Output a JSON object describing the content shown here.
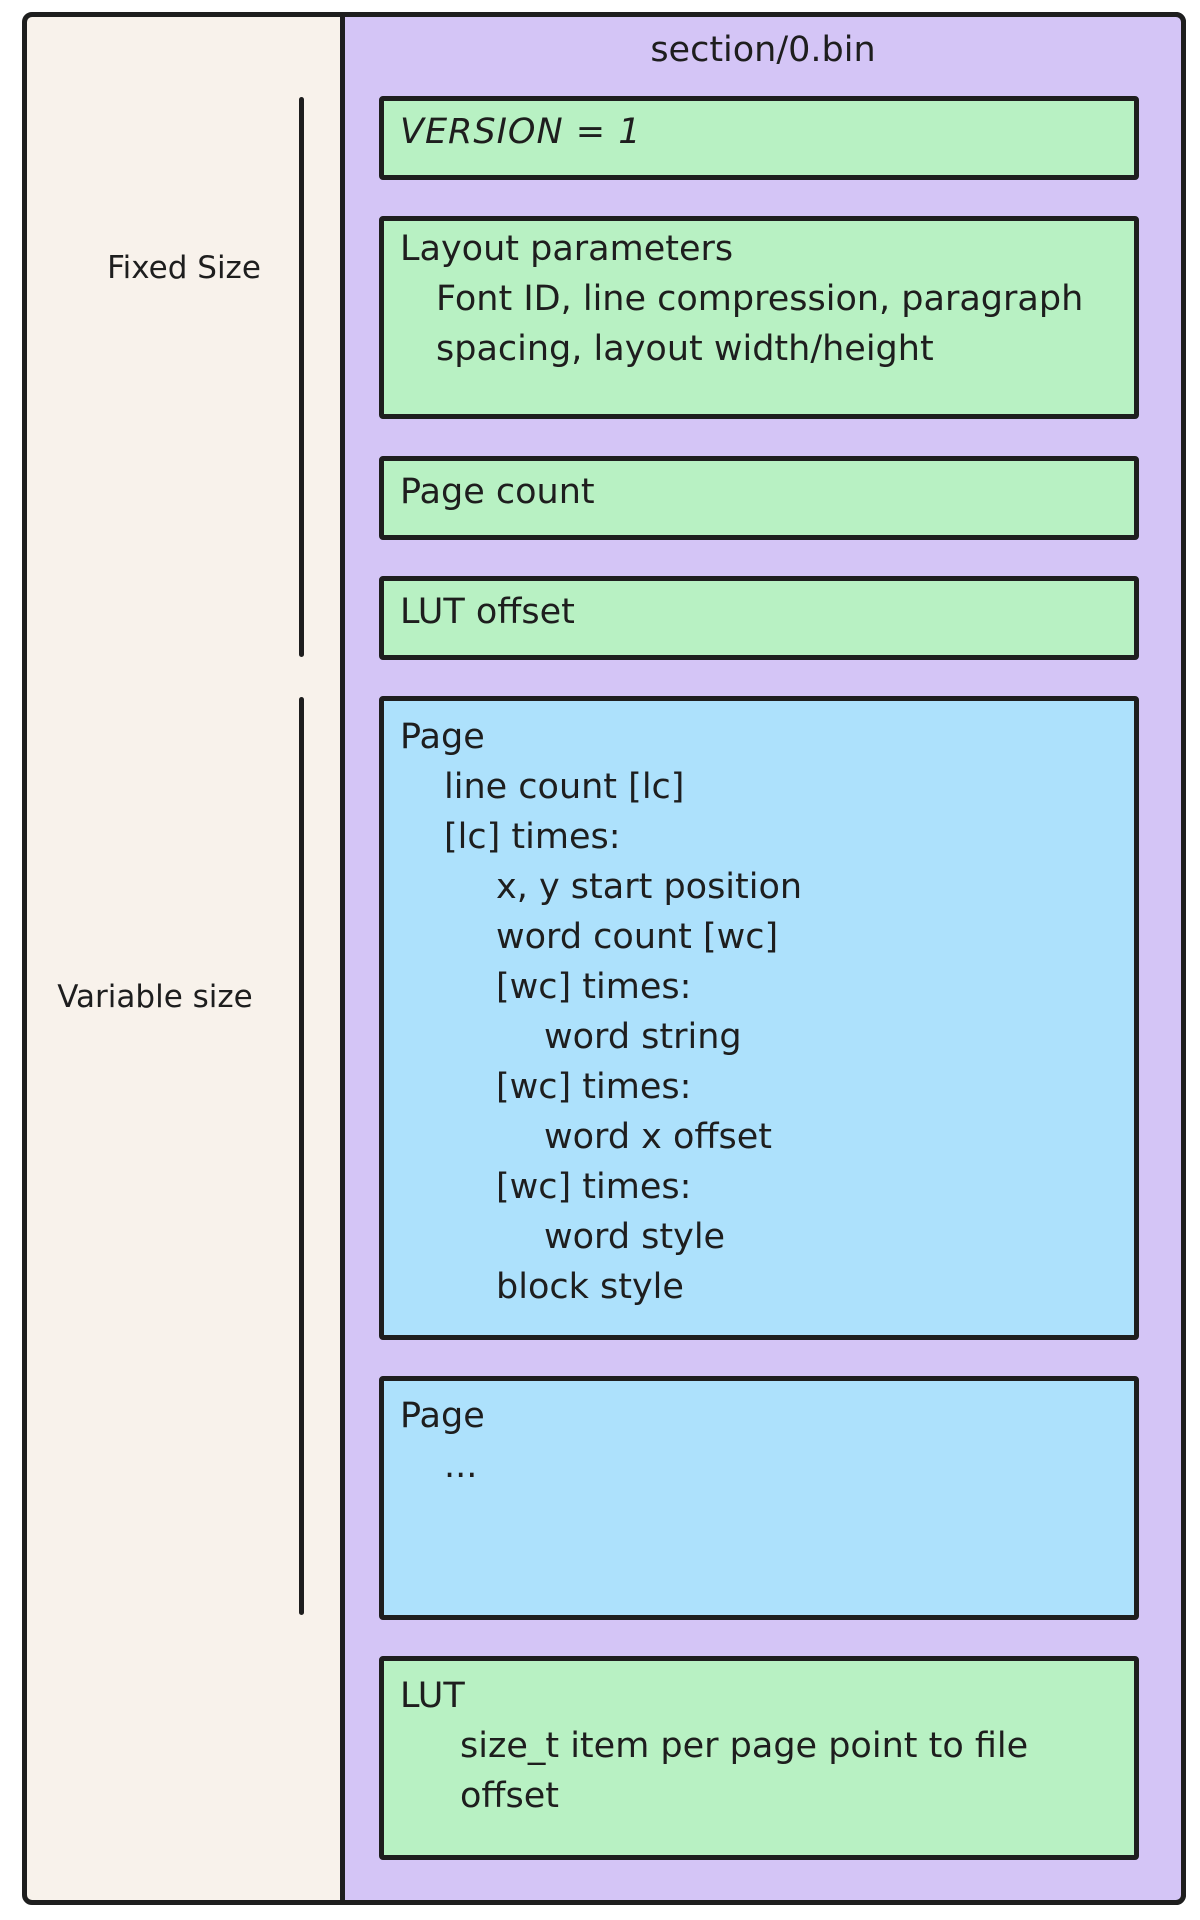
{
  "colors": {
    "frame_fill": "#f8f2eb",
    "panel_fill": "#d4c5f6",
    "fixed_box_fill": "#b8f1c3",
    "variable_box_fill": "#ade1fc",
    "stroke": "#1e1e1e",
    "text": "#1e1e1e"
  },
  "panel": {
    "title": "section/0.bin"
  },
  "side_labels": {
    "fixed": "Fixed Size",
    "variable": "Variable size"
  },
  "boxes": [
    {
      "name": "version",
      "kind": "green",
      "lines": [
        {
          "text": "VERSION = 1",
          "indent": 0
        }
      ]
    },
    {
      "name": "layout-parameters",
      "kind": "green",
      "lines": [
        {
          "text": "Layout parameters",
          "indent": 0
        },
        {
          "text": "Font ID, line compression, paragraph",
          "indent": 1
        },
        {
          "text": "spacing, layout width/height",
          "indent": 1
        }
      ]
    },
    {
      "name": "page-count",
      "kind": "green",
      "lines": [
        {
          "text": "Page count",
          "indent": 0
        }
      ]
    },
    {
      "name": "lut-offset",
      "kind": "green",
      "lines": [
        {
          "text": "LUT offset",
          "indent": 0
        }
      ]
    },
    {
      "name": "page-detail",
      "kind": "blue",
      "lines": [
        {
          "text": "Page",
          "indent": 0
        },
        {
          "text": "line count [lc]",
          "indent": 1
        },
        {
          "text": "[lc] times:",
          "indent": 1
        },
        {
          "text": "x, y start position",
          "indent": 2
        },
        {
          "text": "word count [wc]",
          "indent": 2
        },
        {
          "text": "[wc] times:",
          "indent": 2
        },
        {
          "text": "word string",
          "indent": 3
        },
        {
          "text": "[wc] times:",
          "indent": 2
        },
        {
          "text": "word x offset",
          "indent": 3
        },
        {
          "text": "[wc] times:",
          "indent": 2
        },
        {
          "text": "word style",
          "indent": 3
        },
        {
          "text": "block style",
          "indent": 2
        }
      ]
    },
    {
      "name": "page-ellipsis",
      "kind": "blue",
      "lines": [
        {
          "text": "Page",
          "indent": 0
        },
        {
          "text": "...",
          "indent": 1
        }
      ]
    },
    {
      "name": "lut",
      "kind": "green",
      "lines": [
        {
          "text": "LUT",
          "indent": 0
        },
        {
          "text": "size_t item per page point to file",
          "indent": 1
        },
        {
          "text": "offset",
          "indent": 1
        }
      ]
    }
  ]
}
